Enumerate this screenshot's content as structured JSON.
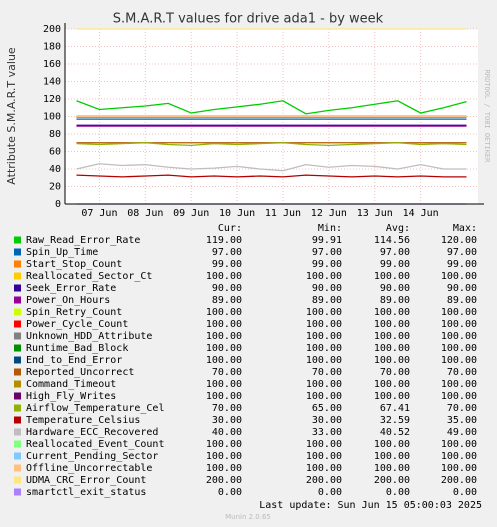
{
  "chart_data": {
    "type": "line",
    "title": "S.M.A.R.T values for drive ada1 - by week",
    "y_label": "Attribute S.M.A.R.T value",
    "side_label": "RRDTOOL / TOBI OETIKER",
    "categories": [
      null,
      "07 Jun",
      null,
      "08 Jun",
      null,
      "09 Jun",
      null,
      "10 Jun",
      null,
      "11 Jun",
      null,
      "12 Jun",
      null,
      "13 Jun",
      null,
      "14 Jun",
      null,
      null
    ],
    "ylim": [
      0,
      200
    ],
    "yticks": [
      0,
      20,
      40,
      60,
      80,
      100,
      120,
      140,
      160,
      180,
      200
    ],
    "grid": true,
    "series": [
      {
        "name": "Raw_Read_Error_Rate",
        "color": "#00cc00",
        "values": [
          118,
          108,
          110,
          112,
          115,
          104,
          108,
          111,
          114,
          118,
          103,
          107,
          110,
          114,
          118,
          104,
          110,
          117
        ]
      },
      {
        "name": "Spin_Up_Time",
        "color": "#0066b3",
        "values": [
          97,
          97,
          97,
          97,
          97,
          97,
          97,
          97,
          97,
          97,
          97,
          97,
          97,
          97,
          97,
          97,
          97,
          97
        ]
      },
      {
        "name": "Start_Stop_Count",
        "color": "#ff8000",
        "values": [
          99,
          99,
          99,
          99,
          99,
          99,
          99,
          99,
          99,
          99,
          99,
          99,
          99,
          99,
          99,
          99,
          99,
          99
        ]
      },
      {
        "name": "Reallocated_Sector_Ct",
        "color": "#ffcc00",
        "values": [
          100,
          100,
          100,
          100,
          100,
          100,
          100,
          100,
          100,
          100,
          100,
          100,
          100,
          100,
          100,
          100,
          100,
          100
        ]
      },
      {
        "name": "Seek_Error_Rate",
        "color": "#330099",
        "values": [
          90,
          90,
          90,
          90,
          90,
          90,
          90,
          90,
          90,
          90,
          90,
          90,
          90,
          90,
          90,
          90,
          90,
          90
        ]
      },
      {
        "name": "Power_On_Hours",
        "color": "#990099",
        "values": [
          89,
          89,
          89,
          89,
          89,
          89,
          89,
          89,
          89,
          89,
          89,
          89,
          89,
          89,
          89,
          89,
          89,
          89
        ]
      },
      {
        "name": "Spin_Retry_Count",
        "color": "#ccff00",
        "values": [
          100,
          100,
          100,
          100,
          100,
          100,
          100,
          100,
          100,
          100,
          100,
          100,
          100,
          100,
          100,
          100,
          100,
          100
        ]
      },
      {
        "name": "Power_Cycle_Count",
        "color": "#ff0000",
        "values": [
          100,
          100,
          100,
          100,
          100,
          100,
          100,
          100,
          100,
          100,
          100,
          100,
          100,
          100,
          100,
          100,
          100,
          100
        ]
      },
      {
        "name": "Unknown_HDD_Attribute",
        "color": "#808080",
        "values": [
          100,
          100,
          100,
          100,
          100,
          100,
          100,
          100,
          100,
          100,
          100,
          100,
          100,
          100,
          100,
          100,
          100,
          100
        ]
      },
      {
        "name": "Runtime_Bad_Block",
        "color": "#008f00",
        "values": [
          100,
          100,
          100,
          100,
          100,
          100,
          100,
          100,
          100,
          100,
          100,
          100,
          100,
          100,
          100,
          100,
          100,
          100
        ]
      },
      {
        "name": "End_to_End_Error",
        "color": "#00487d",
        "values": [
          100,
          100,
          100,
          100,
          100,
          100,
          100,
          100,
          100,
          100,
          100,
          100,
          100,
          100,
          100,
          100,
          100,
          100
        ]
      },
      {
        "name": "Reported_Uncorrect",
        "color": "#b35a00",
        "values": [
          70,
          70,
          70,
          70,
          70,
          70,
          70,
          70,
          70,
          70,
          70,
          70,
          70,
          70,
          70,
          70,
          70,
          70
        ]
      },
      {
        "name": "Command_Timeout",
        "color": "#b38f00",
        "values": [
          100,
          100,
          100,
          100,
          100,
          100,
          100,
          100,
          100,
          100,
          100,
          100,
          100,
          100,
          100,
          100,
          100,
          100
        ]
      },
      {
        "name": "High_Fly_Writes",
        "color": "#6b006b",
        "values": [
          100,
          100,
          100,
          100,
          100,
          100,
          100,
          100,
          100,
          100,
          100,
          100,
          100,
          100,
          100,
          100,
          100,
          100
        ]
      },
      {
        "name": "Airflow_Temperature_Cel",
        "color": "#8fb300",
        "values": [
          69,
          68,
          69,
          70,
          68,
          67,
          69,
          68,
          69,
          70,
          68,
          67,
          68,
          69,
          70,
          68,
          69,
          68
        ]
      },
      {
        "name": "Temperature_Celsius",
        "color": "#b30000",
        "values": [
          33,
          32,
          31,
          32,
          33,
          31,
          32,
          31,
          32,
          31,
          33,
          32,
          31,
          32,
          31,
          32,
          31,
          31
        ]
      },
      {
        "name": "Hardware_ECC_Recovered",
        "color": "#bebebe",
        "values": [
          40,
          46,
          44,
          45,
          42,
          40,
          41,
          43,
          40,
          38,
          45,
          42,
          44,
          43,
          40,
          45,
          40,
          40
        ]
      },
      {
        "name": "Reallocated_Event_Count",
        "color": "#80ff80",
        "values": [
          100,
          100,
          100,
          100,
          100,
          100,
          100,
          100,
          100,
          100,
          100,
          100,
          100,
          100,
          100,
          100,
          100,
          100
        ]
      },
      {
        "name": "Current_Pending_Sector",
        "color": "#80c9ff",
        "values": [
          100,
          100,
          100,
          100,
          100,
          100,
          100,
          100,
          100,
          100,
          100,
          100,
          100,
          100,
          100,
          100,
          100,
          100
        ]
      },
      {
        "name": "Offline_Uncorrectable",
        "color": "#ffc080",
        "values": [
          100,
          100,
          100,
          100,
          100,
          100,
          100,
          100,
          100,
          100,
          100,
          100,
          100,
          100,
          100,
          100,
          100,
          100
        ]
      },
      {
        "name": "UDMA_CRC_Error_Count",
        "color": "#ffe680",
        "values": [
          200,
          200,
          200,
          200,
          200,
          200,
          200,
          200,
          200,
          200,
          200,
          200,
          200,
          200,
          200,
          200,
          200,
          200
        ]
      },
      {
        "name": "smartctl_exit_status",
        "color": "#aa80ff",
        "values": [
          0,
          0,
          0,
          0,
          0,
          0,
          0,
          0,
          0,
          0,
          0,
          0,
          0,
          0,
          0,
          0,
          0,
          0
        ]
      }
    ],
    "stats_headers": [
      "Cur:",
      "Min:",
      "Avg:",
      "Max:"
    ],
    "stats": [
      [
        "119.00",
        "99.91",
        "114.56",
        "120.00"
      ],
      [
        "97.00",
        "97.00",
        "97.00",
        "97.00"
      ],
      [
        "99.00",
        "99.00",
        "99.00",
        "99.00"
      ],
      [
        "100.00",
        "100.00",
        "100.00",
        "100.00"
      ],
      [
        "90.00",
        "90.00",
        "90.00",
        "90.00"
      ],
      [
        "89.00",
        "89.00",
        "89.00",
        "89.00"
      ],
      [
        "100.00",
        "100.00",
        "100.00",
        "100.00"
      ],
      [
        "100.00",
        "100.00",
        "100.00",
        "100.00"
      ],
      [
        "100.00",
        "100.00",
        "100.00",
        "100.00"
      ],
      [
        "100.00",
        "100.00",
        "100.00",
        "100.00"
      ],
      [
        "100.00",
        "100.00",
        "100.00",
        "100.00"
      ],
      [
        "70.00",
        "70.00",
        "70.00",
        "70.00"
      ],
      [
        "100.00",
        "100.00",
        "100.00",
        "100.00"
      ],
      [
        "100.00",
        "100.00",
        "100.00",
        "100.00"
      ],
      [
        "70.00",
        "65.00",
        "67.41",
        "70.00"
      ],
      [
        "30.00",
        "30.00",
        "32.59",
        "35.00"
      ],
      [
        "40.00",
        "33.00",
        "40.52",
        "49.00"
      ],
      [
        "100.00",
        "100.00",
        "100.00",
        "100.00"
      ],
      [
        "100.00",
        "100.00",
        "100.00",
        "100.00"
      ],
      [
        "100.00",
        "100.00",
        "100.00",
        "100.00"
      ],
      [
        "200.00",
        "200.00",
        "200.00",
        "200.00"
      ],
      [
        "0.00",
        "0.00",
        "0.00",
        "0.00"
      ]
    ],
    "last_update": "Last update: Sun Jun 15 05:00:03 2025",
    "footer": "Munin 2.0.65"
  }
}
